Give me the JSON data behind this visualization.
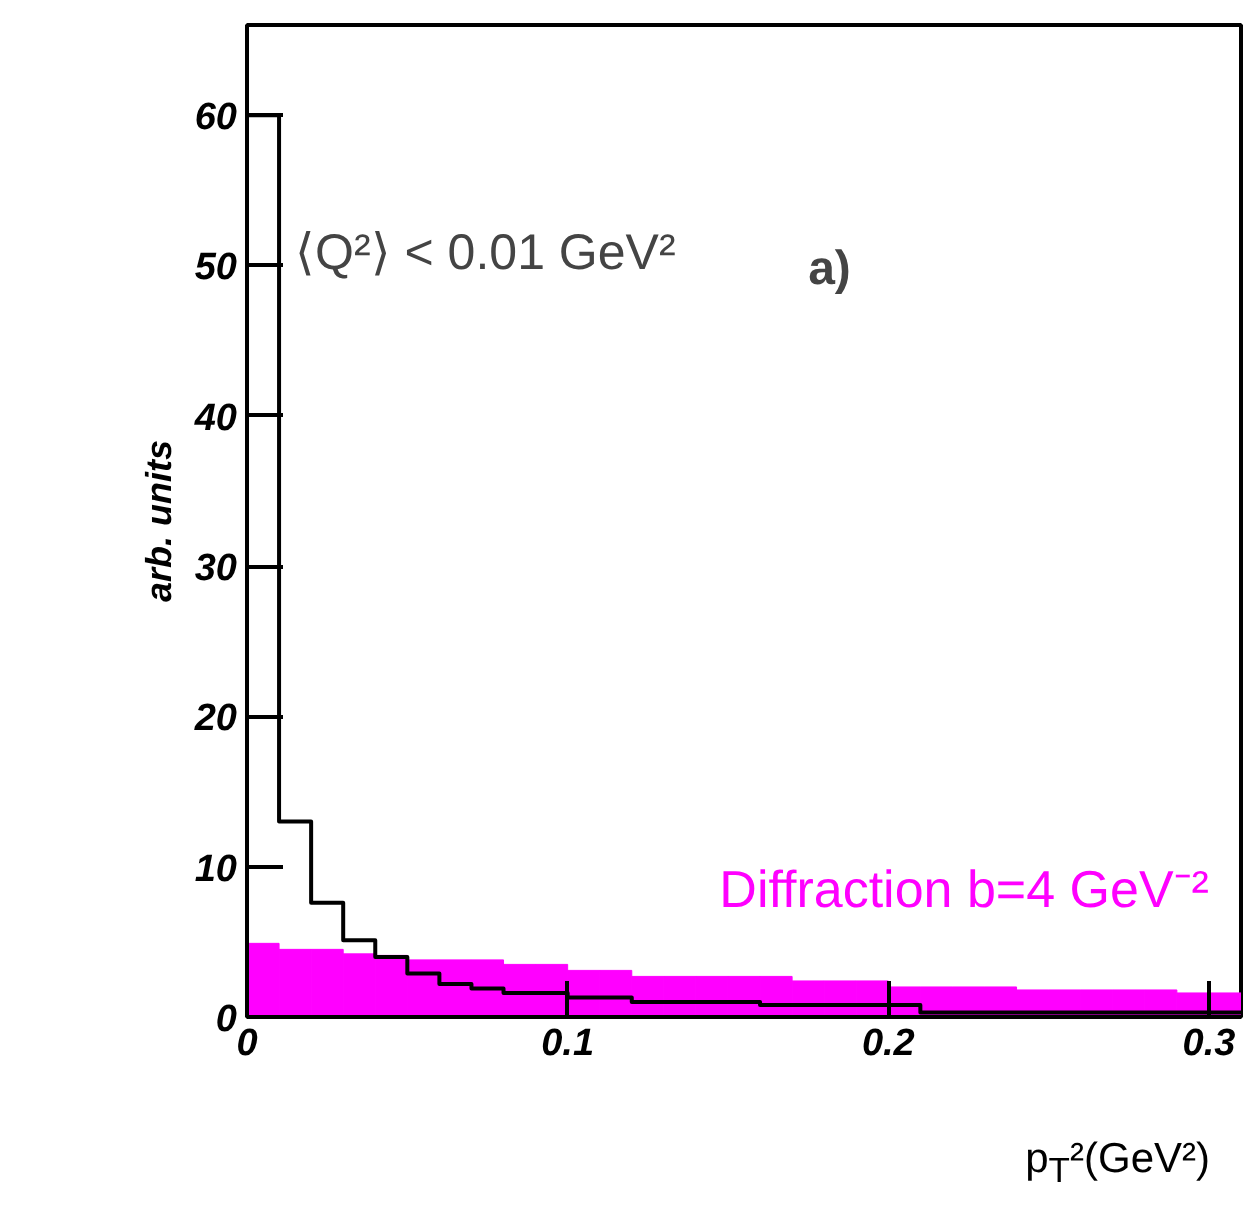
{
  "chart_data": {
    "type": "histogram",
    "bins": [
      0,
      0.01,
      0.02,
      0.03,
      0.04,
      0.05,
      0.06,
      0.07,
      0.08,
      0.09,
      0.1,
      0.11,
      0.12,
      0.13,
      0.14,
      0.15,
      0.16,
      0.17,
      0.18,
      0.19,
      0.2,
      0.21,
      0.22,
      0.23,
      0.24,
      0.25,
      0.26,
      0.27,
      0.28,
      0.29,
      0.3,
      0.31
    ],
    "series": [
      {
        "name": "Diffraction b=4 GeV⁻²",
        "type": "histogram",
        "color": "#ff00ff",
        "values": [
          4.9,
          4.5,
          4.5,
          4.2,
          4.1,
          3.8,
          3.8,
          3.8,
          3.5,
          3.5,
          3.1,
          3.1,
          2.7,
          2.7,
          2.7,
          2.7,
          2.7,
          2.4,
          2.4,
          2.4,
          2.0,
          2.0,
          2.0,
          2.0,
          1.8,
          1.8,
          1.8,
          1.8,
          1.8,
          1.6,
          1.6
        ]
      },
      {
        "type": "step",
        "color": "#000000",
        "x": [
          0,
          0.01,
          0.02,
          0.03,
          0.04,
          0.05,
          0.06,
          0.07,
          0.08,
          0.09,
          0.1,
          0.11,
          0.12,
          0.13,
          0.14,
          0.15,
          0.16,
          0.17,
          0.18,
          0.19,
          0.2,
          0.21,
          0.22,
          0.23,
          0.24,
          0.25,
          0.26,
          0.27,
          0.28,
          0.29,
          0.3,
          0.31
        ],
        "values": [
          60,
          13,
          7.6,
          5.1,
          4.0,
          2.9,
          2.2,
          1.9,
          1.6,
          1.6,
          1.3,
          1.3,
          1.0,
          1.0,
          1.0,
          1.0,
          0.8,
          0.8,
          0.8,
          0.8,
          0.8,
          0.3,
          0.3,
          0.3,
          0.3,
          0.3,
          0.3,
          0.3,
          0.3,
          0.3,
          0.3,
          0.3
        ]
      }
    ],
    "xlabel": "p$_{T}$²(GeV²)",
    "ylabel": "arb. units",
    "xlim": [
      0,
      0.31
    ],
    "ylim": [
      0,
      66
    ],
    "xticks": [
      0,
      0.1,
      0.2,
      0.3
    ],
    "yticks": [
      0,
      10,
      20,
      30,
      40,
      50,
      60
    ],
    "annotations": [
      "⟨Q²⟩ < 0.01 GeV²",
      "a)"
    ],
    "grid": false,
    "legend": false
  }
}
